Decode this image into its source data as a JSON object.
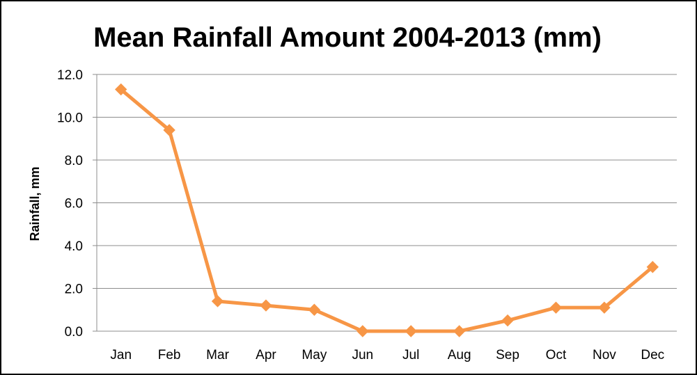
{
  "chart_data": {
    "type": "line",
    "title": "Mean Rainfall Amount 2004-2013 (mm)",
    "xlabel": "",
    "ylabel": "Rainfall, mm",
    "categories": [
      "Jan",
      "Feb",
      "Mar",
      "Apr",
      "May",
      "Jun",
      "Jul",
      "Aug",
      "Sep",
      "Oct",
      "Nov",
      "Dec"
    ],
    "series": [
      {
        "values": [
          11.3,
          9.4,
          1.4,
          1.2,
          1.0,
          0.0,
          0.0,
          0.0,
          0.5,
          1.1,
          1.1,
          3.0
        ],
        "color": "#f79646",
        "marker": "diamond"
      }
    ],
    "ylim": [
      0,
      12
    ],
    "yticks": [
      "0.0",
      "2.0",
      "4.0",
      "6.0",
      "8.0",
      "10.0",
      "12.0"
    ],
    "grid": true,
    "legend": "none"
  }
}
